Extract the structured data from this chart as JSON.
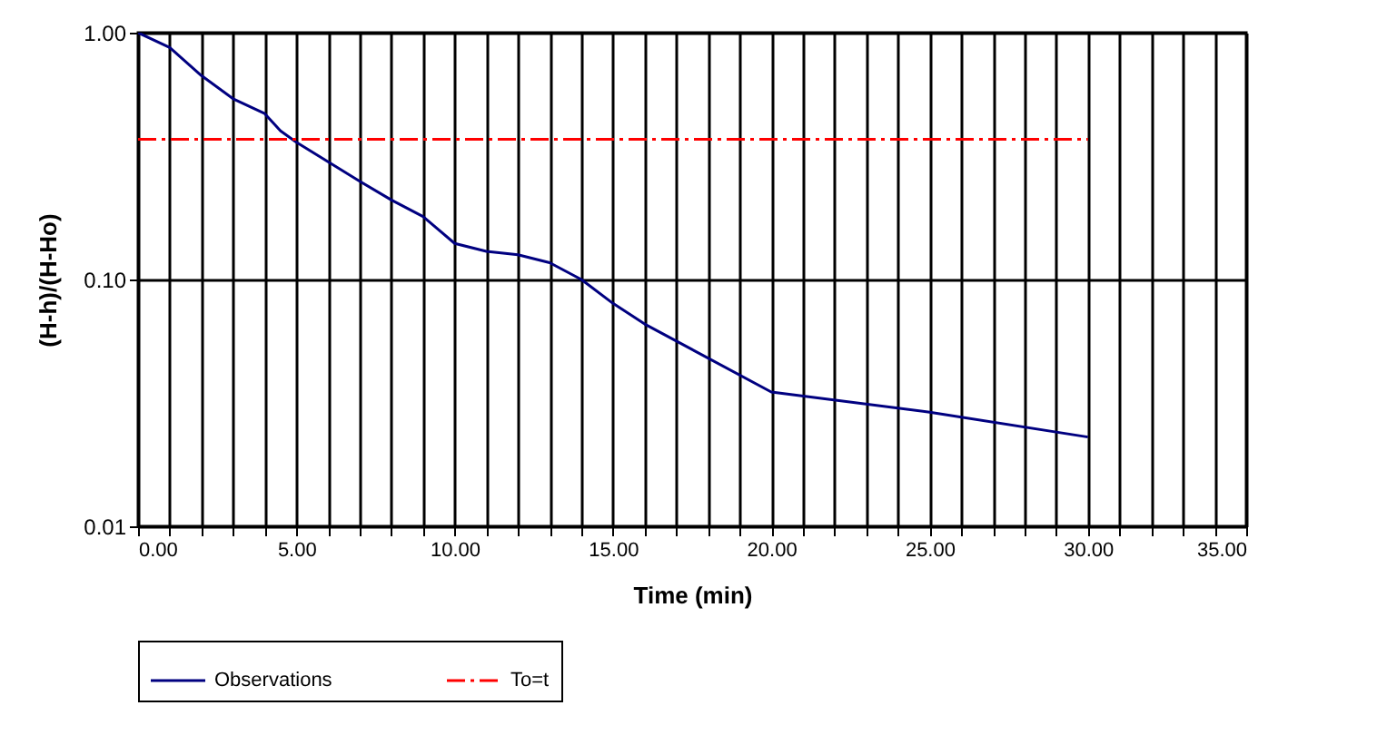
{
  "chart_data": {
    "type": "line",
    "xlabel": "Time (min)",
    "ylabel": "(H-h)/(H-Ho)",
    "series": [
      {
        "name": "Observations",
        "color": "#000080",
        "line_style": "solid",
        "x": [
          0,
          1,
          2,
          3,
          4,
          4.5,
          5,
          6,
          7,
          8,
          9,
          10,
          11,
          12,
          13,
          14,
          15,
          16,
          20,
          25,
          30
        ],
        "values": [
          1.0,
          0.87,
          0.67,
          0.54,
          0.47,
          0.4,
          0.36,
          0.3,
          0.25,
          0.21,
          0.18,
          0.14,
          0.13,
          0.126,
          0.117,
          0.1,
          0.08,
          0.066,
          0.035,
          0.029,
          0.023
        ]
      },
      {
        "name": "To=t",
        "color": "#ff0000",
        "line_style": "dashdot",
        "x": [
          0,
          30
        ],
        "values": [
          0.37,
          0.37
        ]
      }
    ],
    "xlim": [
      0,
      35
    ],
    "xticks": [
      {
        "value": 0,
        "label": "0.00"
      },
      {
        "value": 1,
        "label": null
      },
      {
        "value": 2,
        "label": null
      },
      {
        "value": 3,
        "label": null
      },
      {
        "value": 4,
        "label": null
      },
      {
        "value": 5,
        "label": "5.00"
      },
      {
        "value": 6,
        "label": null
      },
      {
        "value": 7,
        "label": null
      },
      {
        "value": 8,
        "label": null
      },
      {
        "value": 9,
        "label": null
      },
      {
        "value": 10,
        "label": "10.00"
      },
      {
        "value": 11,
        "label": null
      },
      {
        "value": 12,
        "label": null
      },
      {
        "value": 13,
        "label": null
      },
      {
        "value": 14,
        "label": null
      },
      {
        "value": 15,
        "label": "15.00"
      },
      {
        "value": 16,
        "label": null
      },
      {
        "value": 17,
        "label": null
      },
      {
        "value": 18,
        "label": null
      },
      {
        "value": 19,
        "label": null
      },
      {
        "value": 20,
        "label": "20.00"
      },
      {
        "value": 21,
        "label": null
      },
      {
        "value": 22,
        "label": null
      },
      {
        "value": 23,
        "label": null
      },
      {
        "value": 24,
        "label": null
      },
      {
        "value": 25,
        "label": "25.00"
      },
      {
        "value": 26,
        "label": null
      },
      {
        "value": 27,
        "label": null
      },
      {
        "value": 28,
        "label": null
      },
      {
        "value": 29,
        "label": null
      },
      {
        "value": 30,
        "label": "30.00"
      },
      {
        "value": 31,
        "label": null
      },
      {
        "value": 32,
        "label": null
      },
      {
        "value": 33,
        "label": null
      },
      {
        "value": 34,
        "label": null
      },
      {
        "value": 35,
        "label": "35.00"
      }
    ],
    "ylim": [
      0.01,
      1
    ],
    "yticks": [
      {
        "value": 0.01,
        "label": "0.01"
      },
      {
        "value": 0.1,
        "label": "0.10"
      },
      {
        "value": 1,
        "label": "1.00"
      }
    ],
    "log": "y",
    "grid": true,
    "legend": "bottom",
    "marker": "none"
  }
}
